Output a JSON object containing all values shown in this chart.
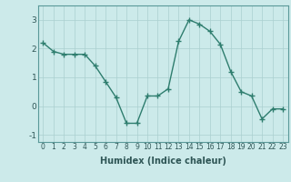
{
  "x": [
    0,
    1,
    2,
    3,
    4,
    5,
    6,
    7,
    8,
    9,
    10,
    11,
    12,
    13,
    14,
    15,
    16,
    17,
    18,
    19,
    20,
    21,
    22,
    23
  ],
  "y": [
    2.2,
    1.9,
    1.8,
    1.8,
    1.8,
    1.4,
    0.85,
    0.3,
    -0.6,
    -0.6,
    0.35,
    0.35,
    0.6,
    2.25,
    3.0,
    2.85,
    2.6,
    2.15,
    1.2,
    0.5,
    0.35,
    -0.45,
    -0.1,
    -0.1
  ],
  "line_color": "#2e7d6e",
  "marker": "+",
  "markersize": 4,
  "linewidth": 1.0,
  "markeredgewidth": 1.0,
  "xlabel": "Humidex (Indice chaleur)",
  "xlim": [
    -0.5,
    23.5
  ],
  "ylim": [
    -1.25,
    3.5
  ],
  "yticks": [
    -1,
    0,
    1,
    2,
    3
  ],
  "xticks": [
    0,
    1,
    2,
    3,
    4,
    5,
    6,
    7,
    8,
    9,
    10,
    11,
    12,
    13,
    14,
    15,
    16,
    17,
    18,
    19,
    20,
    21,
    22,
    23
  ],
  "xtick_labels": [
    "0",
    "1",
    "2",
    "3",
    "4",
    "5",
    "6",
    "7",
    "8",
    "9",
    "10",
    "11",
    "12",
    "13",
    "14",
    "15",
    "16",
    "17",
    "18",
    "19",
    "20",
    "21",
    "22",
    "23"
  ],
  "background_color": "#cceaea",
  "grid_color": "#aacfcf",
  "spine_color": "#5a9999",
  "xlabel_fontsize": 7,
  "xtick_fontsize": 5.5,
  "ytick_fontsize": 6.5
}
